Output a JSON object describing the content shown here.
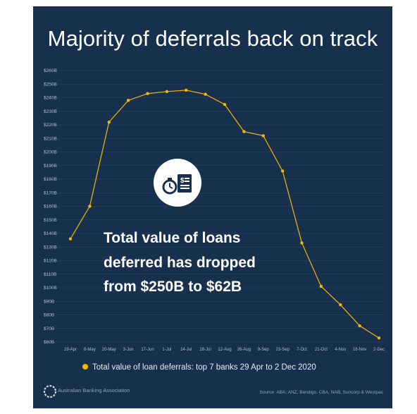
{
  "title": "Majority of deferrals back on track",
  "annotation": [
    "Total value of loans",
    "deferred has dropped",
    "from $250B to $62B"
  ],
  "icon": "stopwatch-and-invoice-icon",
  "legend": "Total value of loan deferrals: top 7 banks 29 Apr to 2 Dec 2020",
  "logo_text": "Australian Banking Association",
  "source": "Source: ABA; ANZ, Bendigo, CBA, NAB, Suncorp & Westpac",
  "colors": {
    "background": "#17304d",
    "line": "#f5b800",
    "text": "#ffffff"
  },
  "chart_data": {
    "type": "line",
    "title": "Majority of deferrals back on track",
    "categories": [
      "29-Apr",
      "6-May",
      "20-May",
      "3-Jun",
      "17-Jun",
      "1-Jul",
      "14-Jul",
      "28-Jul",
      "12-Aug",
      "26-Aug",
      "9-Sep",
      "23-Sep",
      "7-Oct",
      "21-Oct",
      "4-Nov",
      "18-Nov",
      "2-Dec"
    ],
    "series": [
      {
        "name": "Total value of loan deferrals: top 7 banks 29 Apr to 2 Dec 2020",
        "values": [
          136,
          160,
          222,
          238,
          243,
          244.5,
          245.5,
          242.5,
          235,
          215,
          212,
          186,
          133,
          101,
          87.5,
          72,
          63
        ]
      }
    ],
    "yticks": [
      "$60B",
      "$70B",
      "$80B",
      "$90B",
      "$100B",
      "$110B",
      "$120B",
      "$130B",
      "$140B",
      "$150B",
      "$160B",
      "$170B",
      "$180B",
      "$190B",
      "$200B",
      "$210B",
      "$220B",
      "$230B",
      "$240B",
      "$250B",
      "$260B"
    ],
    "ylim": [
      60,
      260
    ],
    "grid": true,
    "legend_position": "bottom"
  }
}
